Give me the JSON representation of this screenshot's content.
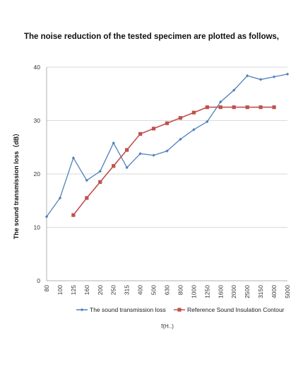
{
  "heading": "The noise reduction of the tested specimen are plotted as follows,",
  "colors": {
    "series1": "#4f81bd",
    "series2": "#c0504d",
    "grid": "#d9d9d9",
    "axis": "#b0b0b0"
  },
  "chart_data": {
    "type": "line",
    "title": "",
    "xlabel": "f(Hz)",
    "xlabel_visible": "f(H..)",
    "ylabel": "The sound transmission loss（dB）",
    "ylim": [
      0,
      40
    ],
    "yticks": [
      0,
      10,
      20,
      30,
      40
    ],
    "grid": true,
    "legend_position": "bottom",
    "categories": [
      "80",
      "100",
      "125",
      "160",
      "200",
      "250",
      "315",
      "400",
      "500",
      "630",
      "800",
      "1000",
      "1250",
      "1600",
      "2000",
      "2500",
      "3150",
      "4000",
      "5000"
    ],
    "series": [
      {
        "name": "The sound transmission loss",
        "marker": "diamond",
        "values": [
          12.0,
          15.5,
          23.0,
          18.8,
          20.5,
          25.8,
          21.2,
          23.8,
          23.5,
          24.3,
          26.5,
          28.3,
          29.8,
          33.5,
          35.7,
          38.4,
          37.7,
          38.2,
          38.7
        ]
      },
      {
        "name": "Reference Sound Insulation Contour",
        "marker": "square",
        "values": [
          null,
          null,
          12.3,
          15.5,
          18.5,
          21.5,
          24.5,
          27.5,
          28.5,
          29.5,
          30.5,
          31.5,
          32.5,
          32.5,
          32.5,
          32.5,
          32.5,
          32.5,
          null
        ]
      }
    ]
  }
}
